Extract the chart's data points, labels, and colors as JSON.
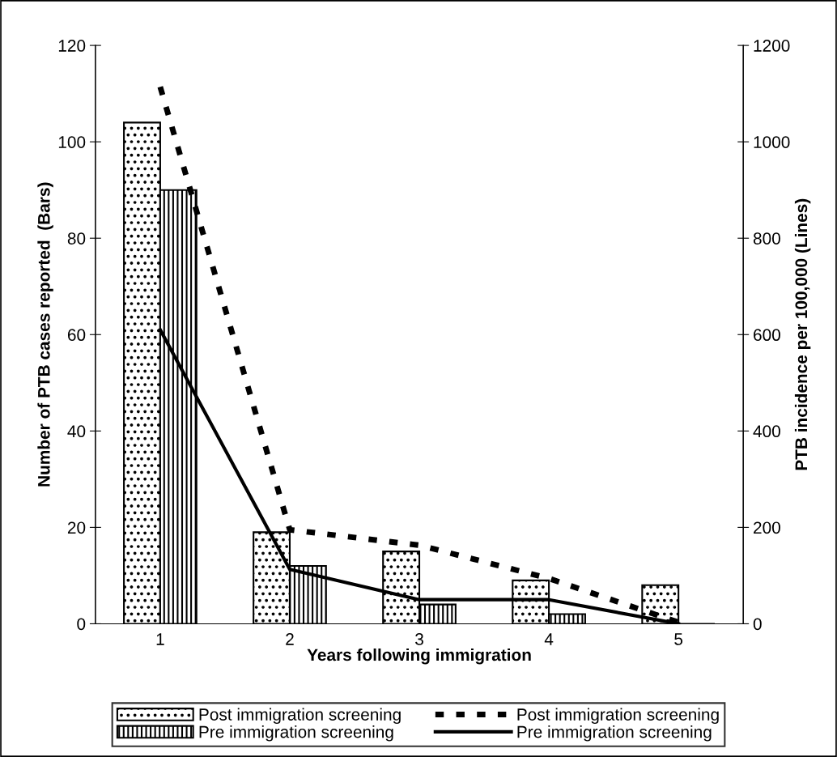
{
  "chart_data": {
    "type": "bar",
    "xlabel": "Years following immigration",
    "ylabel": "Number of PTB cases reported  (Bars)",
    "y2label": "PTB incidence per 100,000 (Lines)",
    "categories": [
      "1",
      "2",
      "3",
      "4",
      "5"
    ],
    "series": [
      {
        "name": "Post immigration screening",
        "color": "#000000",
        "values": [
          104,
          19,
          15,
          9,
          8
        ]
      },
      {
        "name": "Pre immigration screening",
        "color": "#000000",
        "values": [
          90,
          12,
          4,
          2,
          0
        ]
      },
      {
        "name": "Post immigration screening",
        "type": "line",
        "axis": "y2",
        "line_style": "dashed",
        "color": "#000000",
        "values": [
          1114,
          195,
          163,
          94,
          3
        ]
      },
      {
        "name": "Pre immigration screening",
        "type": "line",
        "axis": "y2",
        "line_style": "solid",
        "color": "#000000",
        "values": [
          610,
          113,
          50,
          50,
          0
        ]
      }
    ],
    "ylim": [
      0,
      120
    ],
    "yticks": [
      0,
      20,
      40,
      60,
      80,
      100,
      120
    ],
    "y2lim": [
      0,
      1200
    ],
    "y2ticks": [
      0,
      200,
      400,
      600,
      800,
      1000,
      1200
    ],
    "grid": false,
    "legend": "bottom"
  }
}
